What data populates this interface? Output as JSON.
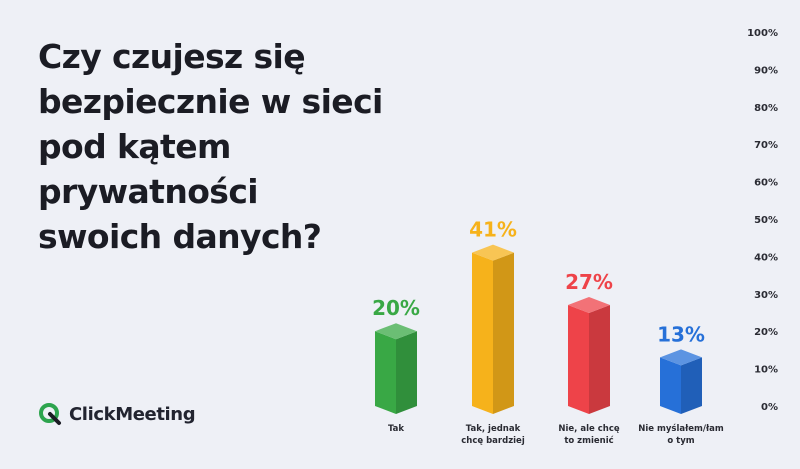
{
  "title_lines": [
    "Czy czujesz się",
    "bezpiecznie w sieci",
    "pod kątem",
    "prywatności",
    "swoich danych?"
  ],
  "brand": {
    "name": "ClickMeeting",
    "icon": "clickmeeting-logo-icon",
    "color": "#2da44e"
  },
  "chart_data": {
    "type": "bar",
    "style": "3d",
    "categories": [
      [
        "Tak"
      ],
      [
        "Tak, jednak",
        "chcę bardziej"
      ],
      [
        "Nie, ale chcę",
        "to zmienić"
      ],
      [
        "Nie myślałem/łam",
        "o tym"
      ]
    ],
    "values": [
      20,
      41,
      27,
      13
    ],
    "value_labels": [
      "20%",
      "41%",
      "27%",
      "13%"
    ],
    "colors": [
      "#39a845",
      "#f6b21b",
      "#ee4349",
      "#2670d8"
    ],
    "y_ticks": [
      "0%",
      "10%",
      "20%",
      "30%",
      "40%",
      "50%",
      "60%",
      "70%",
      "80%",
      "90%",
      "100%"
    ],
    "ylim": [
      0,
      100
    ],
    "y_axis_position": "right",
    "grid": false,
    "legend": "none"
  }
}
